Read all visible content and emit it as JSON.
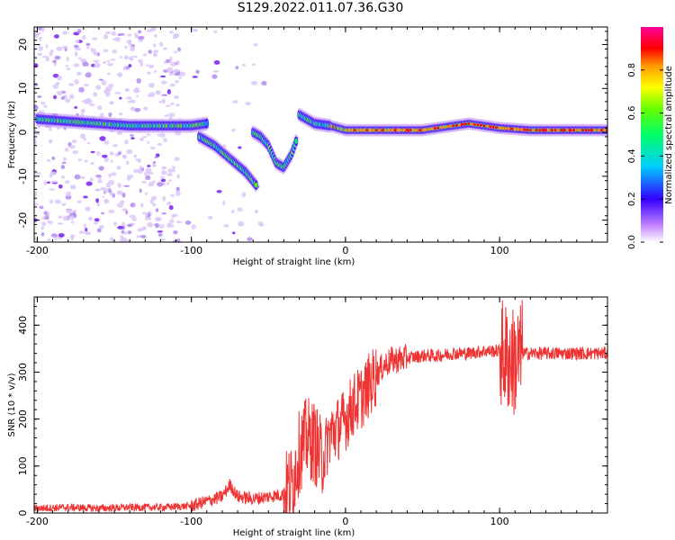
{
  "title": "S129.2022.011.07.36.G30",
  "chart_data": [
    {
      "type": "heatmap",
      "xlabel": "Height of straight line (km)",
      "ylabel": "Frequency (Hz)",
      "xlim": [
        -202,
        170
      ],
      "ylim": [
        -25,
        24
      ],
      "xticks": [
        -200,
        -100,
        0,
        100
      ],
      "yticks": [
        -20,
        -10,
        0,
        10,
        20
      ],
      "colorbar": {
        "label": "Normalized spectral amplitude",
        "range": [
          0.0,
          1.0
        ],
        "ticks": [
          0.0,
          0.2,
          0.4,
          0.6,
          0.8
        ],
        "tick_labels": [
          "0.0",
          "0.2",
          "0.4",
          "0.6",
          "0.8"
        ]
      },
      "ridge": {
        "comment_free": true,
        "segments": [
          {
            "x": [
              -200,
              -180,
              -160,
              -140,
              -120,
              -100,
              -90
            ],
            "y": [
              3,
              2.5,
              2,
              1.5,
              1.5,
              1.5,
              2
            ]
          },
          {
            "x": [
              -95,
              -85,
              -75,
              -65,
              -58
            ],
            "y": [
              -1,
              -3,
              -6,
              -9,
              -12
            ]
          },
          {
            "x": [
              -60,
              -55,
              -50,
              -45,
              -40,
              -35,
              -32
            ],
            "y": [
              0,
              -1,
              -3,
              -7,
              -8,
              -5,
              -2
            ]
          },
          {
            "x": [
              -30,
              -20,
              -10,
              0,
              20,
              50,
              80,
              100,
              120,
              170
            ],
            "y": [
              4,
              2,
              1.5,
              0.5,
              0.5,
              0.5,
              2,
              1,
              0.5,
              0.5
            ]
          }
        ]
      }
    },
    {
      "type": "line",
      "xlabel": "Height of straight line (km)",
      "ylabel": "SNR (10 * v/v)",
      "xlim": [
        -202,
        170
      ],
      "ylim": [
        0,
        460
      ],
      "xticks": [
        -200,
        -100,
        0,
        100
      ],
      "yticks": [
        0,
        100,
        200,
        300,
        400
      ],
      "series": [
        {
          "color": "#ee3333",
          "x": [
            -202,
            -180,
            -160,
            -140,
            -120,
            -100,
            -90,
            -80,
            -75,
            -70,
            -60,
            -50,
            -40,
            -35,
            -30,
            -25,
            -20,
            -15,
            -10,
            -5,
            0,
            5,
            10,
            15,
            20,
            25,
            30,
            40,
            50,
            60,
            70,
            80,
            90,
            100,
            105,
            110,
            115,
            120,
            140,
            160,
            170
          ],
          "y": [
            10,
            12,
            10,
            12,
            12,
            15,
            25,
            35,
            60,
            35,
            30,
            35,
            40,
            60,
            130,
            160,
            150,
            110,
            170,
            180,
            200,
            230,
            245,
            270,
            295,
            315,
            325,
            330,
            335,
            335,
            340,
            340,
            345,
            345,
            330,
            320,
            340,
            340,
            340,
            340,
            340
          ]
        }
      ]
    }
  ]
}
